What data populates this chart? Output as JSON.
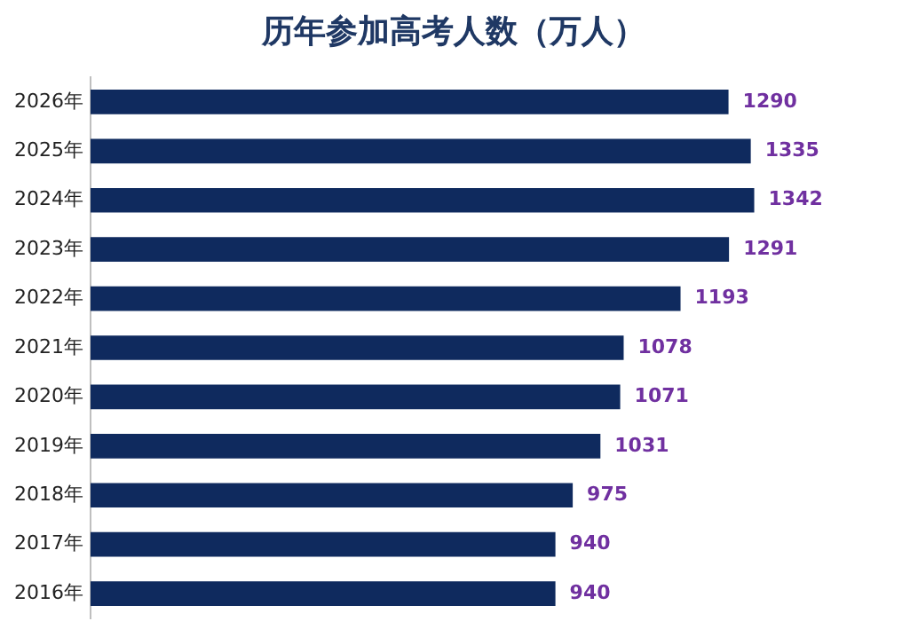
{
  "chart_data": {
    "type": "bar",
    "orientation": "horizontal",
    "title": "历年参加高考人数（万人）",
    "categories": [
      "2026年",
      "2025年",
      "2024年",
      "2023年",
      "2022年",
      "2021年",
      "2020年",
      "2019年",
      "2018年",
      "2017年",
      "2016年"
    ],
    "values": [
      1290,
      1335,
      1342,
      1291,
      1193,
      1078,
      1071,
      1031,
      975,
      940,
      940
    ],
    "color": "#0f2a5e",
    "data_labels": true,
    "grid": false,
    "legend": false
  }
}
